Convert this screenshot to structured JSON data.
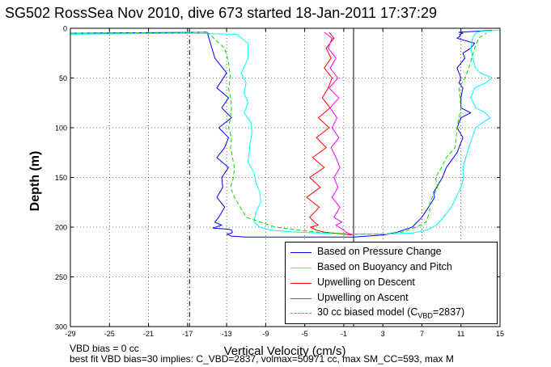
{
  "title": "SG502 RossSea Nov 2010, dive 673 started 18-Jan-2011 17:37:29",
  "footnote_1": "VBD bias = 0 cc",
  "footnote_2": "best fit VBD bias=30 implies: C_VBD=2837, volmax=50971 cc, max SM_CC=593, max M",
  "chart_data": {
    "type": "line",
    "title": "SG502 RossSea Nov 2010, dive 673 started 18-Jan-2011 17:37:29",
    "xlabel": "Vertical Velocity (cm/s)",
    "ylabel": "Depth (m)",
    "xlim": [
      -29,
      15
    ],
    "ylim": [
      300,
      0
    ],
    "y_reversed": true,
    "x_ticks": [
      "-29",
      "-25",
      "-21",
      "-17",
      "-13",
      "-9",
      "-5",
      "-1",
      "3",
      "7",
      "11",
      "15"
    ],
    "y_ticks": [
      "0",
      "50",
      "100",
      "150",
      "200",
      "250",
      "300"
    ],
    "grid": true,
    "legend_position": "bottom-right",
    "reference_lines": [
      {
        "x": -16.8,
        "style": "dash-dot",
        "color": "#000000"
      },
      {
        "x": 0,
        "style": "solid",
        "color": "#000000"
      }
    ],
    "series": [
      {
        "name": "Based on Pressure Change",
        "color": "#0000ff",
        "style": "solid",
        "x": [
          -29,
          -15,
          -14.2,
          -13,
          -14,
          -12.8,
          -13.5,
          -12.5,
          -13.8,
          -12.8,
          -13.2,
          -14,
          -12.8,
          -13.5,
          -13.4,
          -14,
          -13.2,
          -13.8,
          -14.2,
          -13.5,
          -14.4,
          -12.8,
          -12.5,
          -12.4,
          -12.5,
          -13,
          -12.5,
          -11,
          -9,
          -5,
          -2,
          0,
          3,
          4.5,
          6,
          6.5,
          7,
          8,
          8.3,
          8.2,
          8.5,
          9.1,
          9.5,
          10.6,
          11.2,
          10.6,
          11,
          12,
          11,
          11,
          11.2,
          10.8,
          11,
          10.6,
          11.4,
          11.2,
          12,
          12.4,
          10.6,
          10.9,
          10.9,
          11.2,
          10.8,
          12.5,
          14.2
        ],
        "y": [
          5,
          4,
          30,
          45,
          60,
          70,
          80,
          90,
          100,
          110,
          120,
          130,
          140,
          150,
          160,
          170,
          180,
          190,
          195,
          198,
          201,
          202,
          203,
          205,
          206,
          207,
          209,
          210,
          210,
          210,
          210,
          210,
          208,
          205,
          200,
          195,
          190,
          175,
          170,
          165,
          160,
          150,
          140,
          125,
          110,
          100,
          90,
          85,
          80,
          70,
          60,
          55,
          50,
          40,
          30,
          25,
          20,
          15,
          10,
          8,
          6,
          5,
          4,
          3,
          2
        ]
      },
      {
        "name": "Based on Buoyancy and Pitch",
        "color": "#00ffff",
        "style": "solid",
        "x": [
          -29,
          -17,
          -12,
          -10.8,
          -10.8,
          -11.5,
          -11,
          -11.2,
          -10.8,
          -11.2,
          -10.5,
          -10.4,
          -10.6,
          -10.7,
          -10.8,
          -10.2,
          -10,
          -9.6,
          -9.5,
          -10,
          -10.2,
          -9.6,
          -8.5,
          -6,
          -3,
          0,
          3,
          6,
          7.5,
          8.5,
          9.2,
          10,
          10.5,
          11,
          11.3,
          11.2,
          11.8,
          12.5,
          13.2,
          14,
          13.5,
          12.5,
          12.3,
          12,
          12.4,
          13.5,
          14.2,
          13,
          12.5,
          12.2,
          12,
          12.2,
          12.5,
          13,
          15
        ],
        "y": [
          6,
          5,
          6,
          15,
          30,
          45,
          55,
          65,
          75,
          85,
          95,
          105,
          115,
          125,
          135,
          145,
          155,
          165,
          175,
          185,
          195,
          200,
          203,
          205,
          206,
          207,
          207,
          206,
          203,
          198,
          190,
          180,
          170,
          160,
          150,
          140,
          120,
          100,
          95,
          90,
          85,
          80,
          75,
          70,
          60,
          55,
          50,
          45,
          40,
          30,
          20,
          10,
          5,
          3,
          2
        ]
      },
      {
        "name": "Upwelling on Descent",
        "color": "#ff0000",
        "style": "solid",
        "x": [
          -2.5,
          -2,
          -2.8,
          -2.3,
          -3,
          -2.2,
          -2.6,
          -3.2,
          -2.4,
          -3.6,
          -2.5,
          -3.8,
          -2.8,
          -4.2,
          -3,
          -4.5,
          -3.4,
          -4.8,
          -3.5,
          -4.5,
          -4,
          -3.6,
          -4.4,
          -3.8,
          -3,
          -2,
          -1,
          -0.2
        ],
        "y": [
          4,
          10,
          20,
          30,
          40,
          50,
          60,
          70,
          80,
          90,
          100,
          110,
          120,
          130,
          140,
          150,
          160,
          170,
          180,
          190,
          195,
          198,
          200,
          203,
          205,
          206,
          207,
          208
        ]
      },
      {
        "name": "Upwelling on Ascent",
        "color": "#ff00ff",
        "style": "solid",
        "x": [
          -3,
          -2.2,
          -2.6,
          -1.8,
          -2.4,
          -1.6,
          -2.5,
          -1.5,
          -2.4,
          -1.7,
          -2.2,
          -1.5,
          -2.3,
          -1.8,
          -1.4,
          -2,
          -1.6,
          -2.2,
          -1.4,
          -2,
          -1.2,
          -1.8,
          -1.5,
          -1,
          -0.8,
          -0.5,
          -0.3,
          0
        ],
        "y": [
          4,
          10,
          20,
          30,
          40,
          50,
          60,
          70,
          80,
          90,
          100,
          110,
          120,
          130,
          140,
          150,
          160,
          170,
          180,
          190,
          195,
          198,
          200,
          203,
          205,
          206,
          207,
          208
        ]
      },
      {
        "name": "30 cc biased model (C_VBD=2837)",
        "color": "#00dd00",
        "style": "dashed",
        "x": [
          -29,
          -15,
          -13.2,
          -12.8,
          -12.6,
          -12.8,
          -12.6,
          -12.5,
          -12.6,
          -12.8,
          -12.5,
          -12.6,
          -12.4,
          -12.2,
          -12.3,
          -12.6,
          -12.2,
          -11,
          -8,
          -4,
          0,
          3,
          5,
          6.4,
          7.4,
          7.8,
          7.8,
          8.6,
          8.4,
          9,
          9.5,
          10.4,
          10.6,
          11,
          10.8,
          11.4,
          11.8,
          12.4,
          12.8,
          13.6
        ],
        "y": [
          5,
          4,
          20,
          35,
          50,
          60,
          70,
          80,
          90,
          100,
          110,
          120,
          130,
          140,
          150,
          160,
          170,
          190,
          200,
          205,
          207,
          207,
          205,
          200,
          195,
          185,
          175,
          160,
          150,
          140,
          130,
          120,
          100,
          80,
          60,
          50,
          40,
          20,
          10,
          5
        ]
      }
    ]
  },
  "legend": {
    "items": [
      {
        "label": "Based on Pressure Change",
        "color": "#0000ff",
        "dash": "none"
      },
      {
        "label": "Based on Buoyancy and Pitch",
        "color": "#00ffff",
        "dash": "none"
      },
      {
        "label": "Upwelling on Descent",
        "color": "#ff0000",
        "dash": "none"
      },
      {
        "label": "Upwelling on Ascent",
        "color": "#ff00ff",
        "dash": "none"
      },
      {
        "label_main": "30 cc biased model (C",
        "label_sub": "VBD",
        "label_tail": "=2837)",
        "color": "#00dd00",
        "dash": "dashed"
      }
    ]
  }
}
